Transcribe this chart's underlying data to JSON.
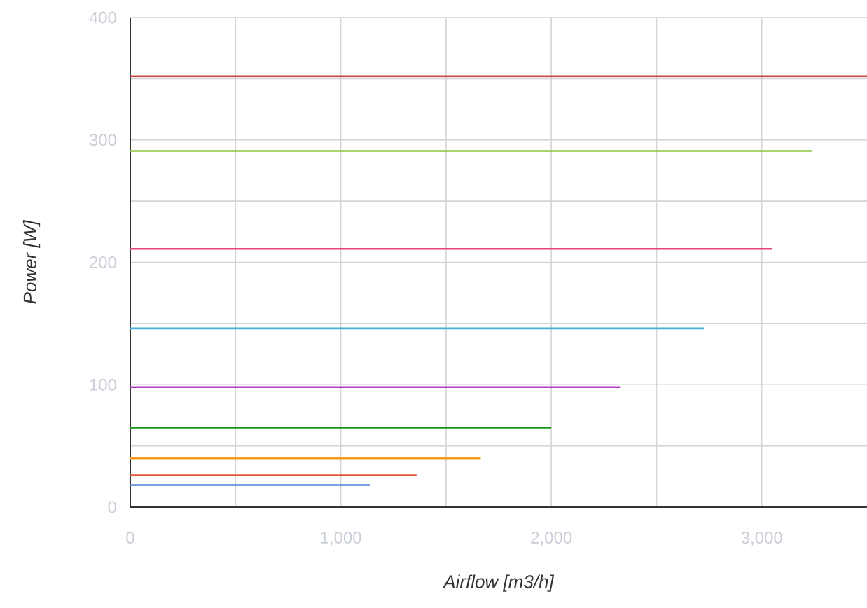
{
  "chart_data": {
    "type": "line",
    "xlabel": "Airflow [m3/h]",
    "ylabel": "Power [W]",
    "xlim": [
      0,
      3500
    ],
    "ylim": [
      0,
      400
    ],
    "xticks": [
      0,
      {
        "value": 500,
        "label": null
      },
      {
        "value": 1000,
        "label": "1,000"
      },
      {
        "value": 1500,
        "label": null
      },
      {
        "value": 2000,
        "label": "2,000"
      },
      {
        "value": 2500,
        "label": null
      },
      {
        "value": 3000,
        "label": "3,000"
      }
    ],
    "yticks": [
      0,
      {
        "value": 50,
        "label": null
      },
      100,
      {
        "value": 150,
        "label": null
      },
      200,
      {
        "value": 250,
        "label": null
      },
      300,
      {
        "value": 350,
        "label": null
      },
      400
    ],
    "grid": true,
    "series": [
      {
        "color": "#c84848",
        "x": [
          0,
          3500
        ],
        "values": [
          352,
          352
        ]
      },
      {
        "color": "#8cc43c",
        "x": [
          0,
          3240
        ],
        "values": [
          291,
          291
        ]
      },
      {
        "color": "#e0467c",
        "x": [
          0,
          3050
        ],
        "values": [
          211,
          211
        ]
      },
      {
        "color": "#44b0d8",
        "x": [
          0,
          2725
        ],
        "values": [
          146,
          146
        ]
      },
      {
        "color": "#b040c0",
        "x": [
          0,
          2330
        ],
        "values": [
          98,
          98
        ]
      },
      {
        "color": "#18961a",
        "x": [
          0,
          2000
        ],
        "values": [
          65,
          65
        ]
      },
      {
        "color": "#f59a1a",
        "x": [
          0,
          1665
        ],
        "values": [
          40,
          40
        ]
      },
      {
        "color": "#e0553a",
        "x": [
          0,
          1360
        ],
        "values": [
          26,
          26
        ]
      },
      {
        "color": "#5080d8",
        "x": [
          0,
          1140
        ],
        "values": [
          18,
          18
        ]
      }
    ]
  }
}
